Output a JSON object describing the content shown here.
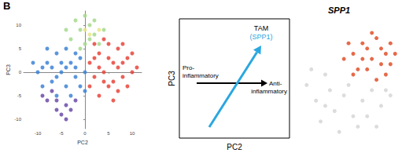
{
  "panel_label": "B",
  "chart_data": [
    {
      "type": "scatter",
      "x_label": "PC2",
      "y_label": "PC3",
      "xlim": [
        -13,
        12
      ],
      "ylim": [
        -12,
        13
      ],
      "xticks": [
        -10,
        -5,
        0,
        5,
        10
      ],
      "yticks": [
        -10,
        -5,
        0,
        5,
        10
      ],
      "grid": false,
      "series": [
        {
          "color": "#3d82d6",
          "x": [
            -10,
            -8,
            -7,
            -6,
            -5,
            -4,
            -3,
            -2,
            -1,
            0,
            -9,
            -6,
            -4,
            -2,
            -8,
            -3,
            -5,
            -7,
            -1,
            -11,
            -4,
            -6,
            0,
            -2,
            -9
          ],
          "y": [
            0,
            2,
            -2,
            4,
            0,
            -3,
            2,
            -1,
            3,
            0,
            -3,
            -5,
            5,
            4,
            5,
            -5,
            2,
            1,
            -3,
            2,
            1,
            -1,
            -4,
            1,
            1
          ]
        },
        {
          "color": "#e8443a",
          "x": [
            1,
            2,
            3,
            4,
            5,
            6,
            7,
            8,
            9,
            10,
            3,
            5,
            7,
            2,
            6,
            8,
            4,
            9,
            1,
            5,
            7,
            10,
            3,
            6,
            8,
            4,
            2,
            11
          ],
          "y": [
            2,
            -1,
            4,
            0,
            -3,
            2,
            5,
            -1,
            3,
            0,
            -5,
            6,
            -4,
            6,
            -6,
            6,
            -2,
            -3,
            -3,
            3,
            1,
            4,
            1,
            -2,
            2,
            7,
            3,
            1
          ]
        },
        {
          "color": "#6b4aa8",
          "x": [
            -8,
            -6,
            -4,
            -7,
            -5,
            -3,
            -9,
            -2,
            -6,
            -4
          ],
          "y": [
            -6,
            -8,
            -7,
            -4,
            -9,
            -8,
            -5,
            -6,
            -6,
            -10
          ]
        },
        {
          "color": "#a6d98c",
          "x": [
            -3,
            -1,
            0,
            1,
            2,
            -2,
            0,
            3,
            -4,
            1,
            4,
            -1,
            2
          ],
          "y": [
            7,
            9,
            6,
            10,
            8,
            11,
            12,
            6,
            9,
            7,
            9,
            5,
            11
          ]
        },
        {
          "color": "#e6e68a",
          "x": [
            1,
            3,
            0
          ],
          "y": [
            8,
            9,
            9
          ]
        }
      ]
    },
    {
      "type": "scatter",
      "title": "SPP1",
      "xlim": [
        -12,
        12
      ],
      "ylim": [
        -12,
        13
      ],
      "tick_labels": false,
      "series": [
        {
          "color": "#d6d6d6",
          "x": [
            -10,
            -8,
            -6,
            -4,
            -2,
            0,
            2,
            4,
            6,
            8,
            -7,
            -3,
            1,
            -5,
            -9,
            3,
            -1,
            5,
            -6,
            7
          ],
          "y": [
            0,
            -3,
            2,
            -5,
            -2,
            -6,
            -3,
            -1,
            -4,
            -2,
            -7,
            -9,
            -8,
            -1,
            3,
            -6,
            0,
            -8,
            -4,
            -1
          ]
        },
        {
          "color": "#e0502a",
          "x": [
            0,
            2,
            4,
            6,
            8,
            3,
            5,
            7,
            -2,
            1,
            9,
            4,
            6,
            2,
            -1,
            8,
            5,
            3,
            7,
            0
          ],
          "y": [
            6,
            8,
            5,
            7,
            4,
            3,
            9,
            2,
            5,
            3,
            6,
            10,
            4,
            5,
            8,
            8,
            1,
            7,
            6,
            2
          ]
        }
      ]
    }
  ],
  "diagram": {
    "x_label": "PC2",
    "y_label": "PC3",
    "black_arrow": {
      "start_label": [
        "Pro-",
        "inflammatory"
      ],
      "end_label": [
        "Anti-",
        "inflammatory"
      ]
    },
    "blue_arrow": {
      "label": "TAM",
      "sub_label": "(SPP1)"
    }
  }
}
